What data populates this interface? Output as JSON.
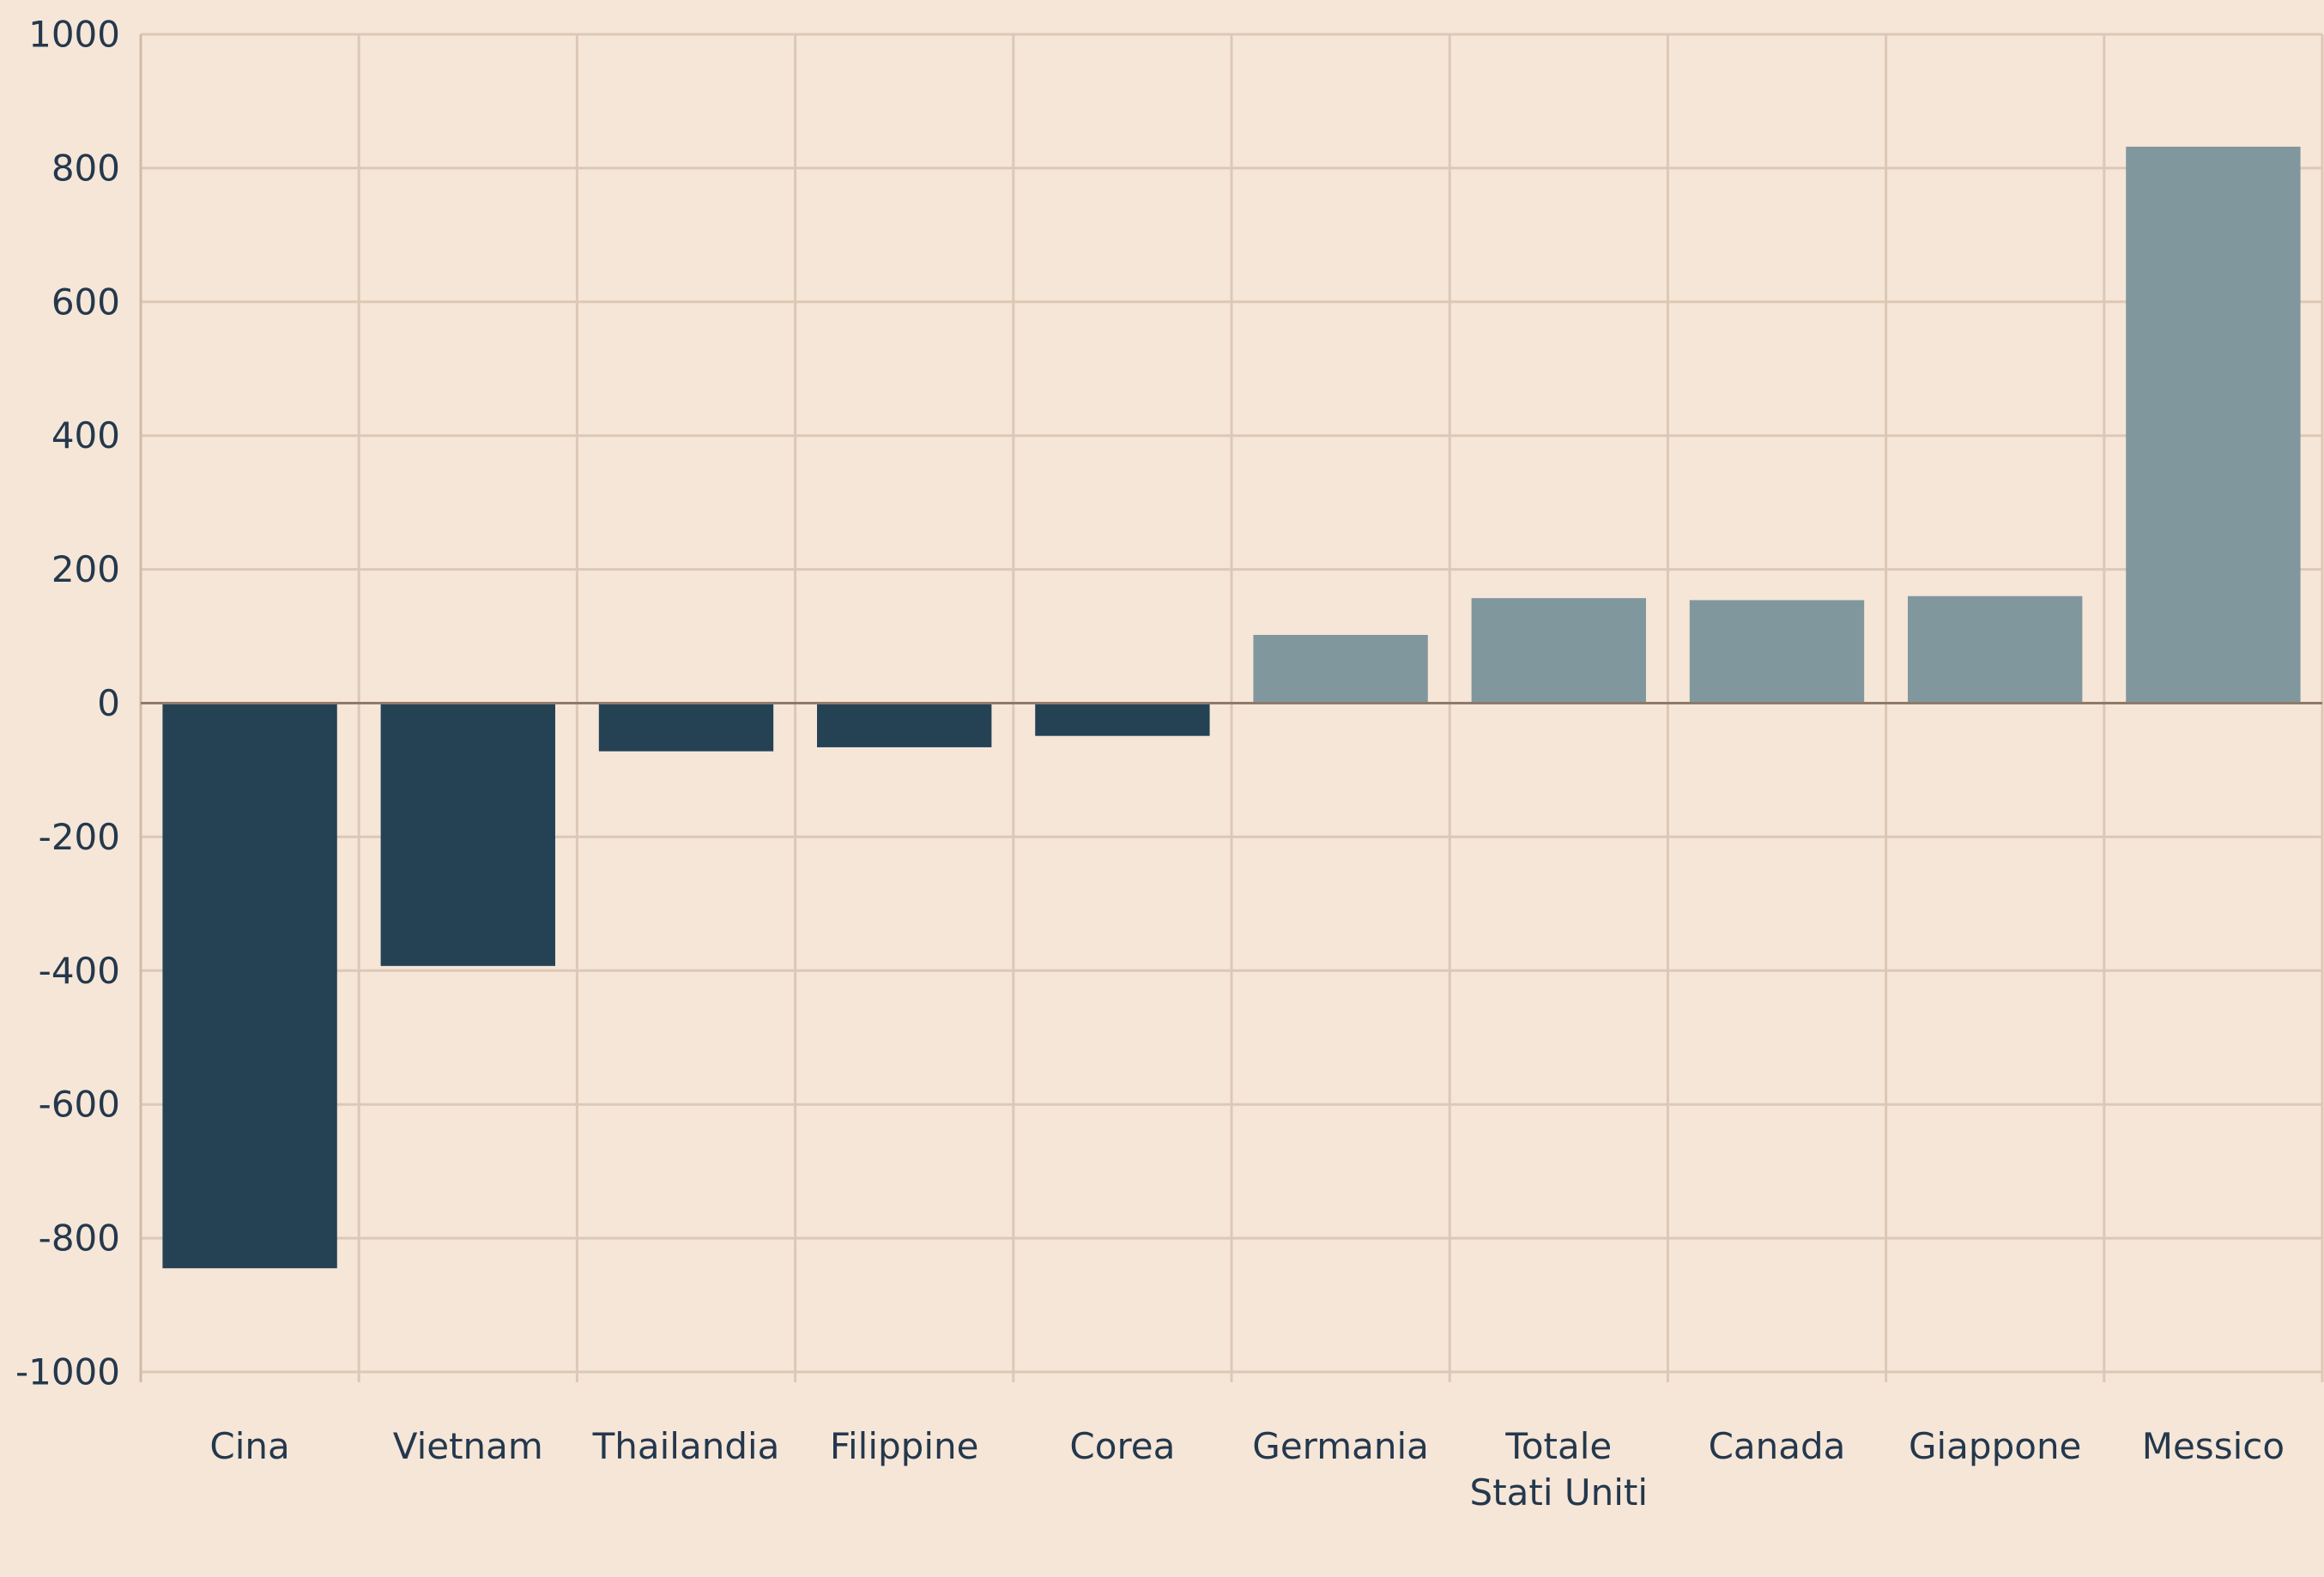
{
  "chart_data": {
    "type": "bar",
    "categories": [
      [
        "Cina"
      ],
      [
        "Vietnam"
      ],
      [
        "Thailandia"
      ],
      [
        "Filippine"
      ],
      [
        "Corea"
      ],
      [
        "Germania"
      ],
      [
        "Totale",
        "Stati Uniti"
      ],
      [
        "Canada"
      ],
      [
        "Giappone"
      ],
      [
        "Messico"
      ]
    ],
    "values": [
      -845,
      -393,
      -72,
      -66,
      -49,
      102,
      157,
      154,
      160,
      832
    ],
    "ylim": [
      -1000,
      1000
    ],
    "yticks": [
      1000,
      800,
      600,
      400,
      200,
      0,
      -200,
      -400,
      -600,
      -800,
      -1000
    ],
    "ytick_labels": [
      "1000",
      "800",
      "600",
      "400",
      "200",
      "0",
      "-200",
      "-400",
      "-600",
      "-800",
      "-1000"
    ],
    "colors": {
      "negative": "#254255",
      "positive": "#80979e",
      "background": "#f6e6d7",
      "grid": "#ddc8b6",
      "text": "#24384d"
    },
    "grid": true,
    "title": "",
    "xlabel": "",
    "ylabel": ""
  }
}
